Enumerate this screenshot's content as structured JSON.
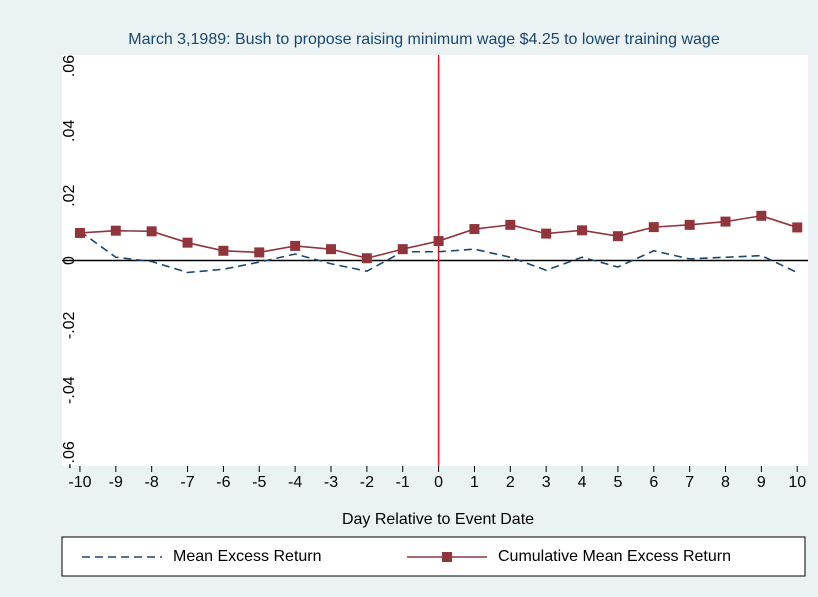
{
  "chart_data": {
    "type": "line",
    "title": "March 3,1989: Bush to propose raising minimum wage $4.25 to lower training wage",
    "x_label": "Day Relative to Event Date",
    "x": [
      -10,
      -9,
      -8,
      -7,
      -6,
      -5,
      -4,
      -3,
      -2,
      -1,
      0,
      1,
      2,
      3,
      4,
      5,
      6,
      7,
      8,
      9,
      10
    ],
    "series": [
      {
        "name": "Mean Excess Return",
        "color": "#1a476f",
        "dash": true,
        "markers": false,
        "values": [
          0.009,
          0.001,
          -0.0003,
          -0.0037,
          -0.0027,
          -0.0005,
          0.002,
          -0.001,
          -0.0033,
          0.0027,
          0.0027,
          0.0035,
          0.001,
          -0.003,
          0.001,
          -0.002,
          0.003,
          0.0005,
          0.001,
          0.0015,
          -0.0037
        ]
      },
      {
        "name": "Cumulative Mean Excess Return",
        "color": "#90353b",
        "dash": false,
        "markers": true,
        "values": [
          0.0085,
          0.0092,
          0.009,
          0.0055,
          0.003,
          0.0025,
          0.0045,
          0.0035,
          0.0007,
          0.0035,
          0.006,
          0.0097,
          0.011,
          0.0083,
          0.0093,
          0.0075,
          0.0103,
          0.011,
          0.012,
          0.0138,
          0.0102
        ]
      }
    ],
    "xlim": [
      -10.5,
      10.3
    ],
    "xticks": [
      -10,
      -9,
      -8,
      -7,
      -6,
      -5,
      -4,
      -3,
      -2,
      -1,
      0,
      1,
      2,
      3,
      4,
      5,
      6,
      7,
      8,
      9,
      10
    ],
    "ylim": [
      -0.0634,
      0.0634
    ],
    "yticks": [
      {
        "value": 0.06,
        "label": ".06"
      },
      {
        "value": 0.04,
        "label": ".04"
      },
      {
        "value": 0.02,
        "label": ".02"
      },
      0,
      {
        "value": -0.02,
        "label": "-.02"
      },
      {
        "value": -0.04,
        "label": "-.04"
      },
      {
        "value": -0.06,
        "label": "-.06"
      }
    ],
    "event_line_x": 0,
    "event_line_color": "#e8151a",
    "reference_line_y": 0,
    "legend": "bottom"
  }
}
